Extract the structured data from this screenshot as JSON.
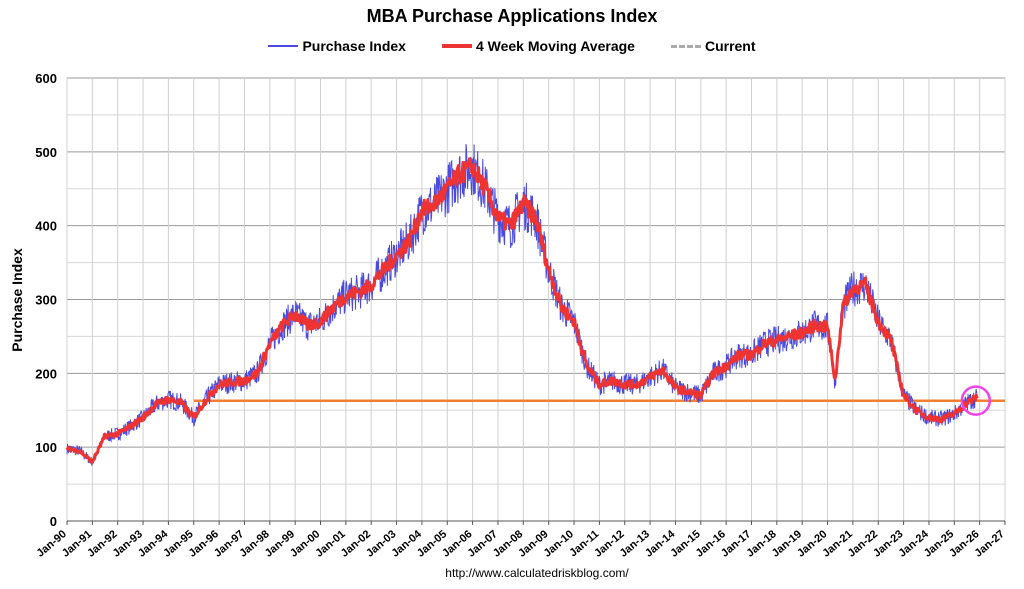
{
  "chart_data": {
    "type": "line",
    "title": "MBA Purchase Applications Index",
    "ylabel": "Purchase Index",
    "xlabel": "",
    "ylim": [
      0,
      600
    ],
    "yticks": [
      0,
      100,
      200,
      300,
      400,
      500,
      600
    ],
    "x_tick_labels": [
      "Jan-90",
      "Jan-91",
      "Jan-92",
      "Jan-93",
      "Jan-94",
      "Jan-95",
      "Jan-96",
      "Jan-97",
      "Jan-98",
      "Jan-99",
      "Jan-00",
      "Jan-01",
      "Jan-02",
      "Jan-03",
      "Jan-04",
      "Jan-05",
      "Jan-06",
      "Jan-07",
      "Jan-08",
      "Jan-09",
      "Jan-10",
      "Jan-11",
      "Jan-12",
      "Jan-13",
      "Jan-14",
      "Jan-15",
      "Jan-16",
      "Jan-17",
      "Jan-18",
      "Jan-19",
      "Jan-20",
      "Jan-21",
      "Jan-22",
      "Jan-23",
      "Jan-24",
      "Jan-25",
      "Jan-26",
      "Jan-27"
    ],
    "xlim": [
      1990,
      2027
    ],
    "grid": "horizontal and vertical",
    "legend_position": "top",
    "series": [
      {
        "name": "Purchase Index",
        "color": "#4a4adf",
        "points": [
          [
            1990.0,
            98
          ],
          [
            1990.5,
            95
          ],
          [
            1991.0,
            80
          ],
          [
            1991.5,
            115
          ],
          [
            1992.0,
            118
          ],
          [
            1992.5,
            128
          ],
          [
            1993.0,
            140
          ],
          [
            1993.5,
            158
          ],
          [
            1994.0,
            165
          ],
          [
            1994.5,
            160
          ],
          [
            1995.0,
            140
          ],
          [
            1995.5,
            165
          ],
          [
            1996.0,
            185
          ],
          [
            1996.5,
            188
          ],
          [
            1997.0,
            190
          ],
          [
            1997.5,
            200
          ],
          [
            1998.0,
            240
          ],
          [
            1998.5,
            265
          ],
          [
            1999.0,
            280
          ],
          [
            1999.5,
            265
          ],
          [
            2000.0,
            270
          ],
          [
            2000.5,
            290
          ],
          [
            2001.0,
            305
          ],
          [
            2001.5,
            310
          ],
          [
            2002.0,
            320
          ],
          [
            2002.5,
            340
          ],
          [
            2003.0,
            360
          ],
          [
            2003.5,
            380
          ],
          [
            2004.0,
            420
          ],
          [
            2004.5,
            430
          ],
          [
            2005.0,
            450
          ],
          [
            2005.5,
            470
          ],
          [
            2006.0,
            480
          ],
          [
            2006.5,
            450
          ],
          [
            2007.0,
            410
          ],
          [
            2007.5,
            400
          ],
          [
            2008.0,
            430
          ],
          [
            2008.5,
            410
          ],
          [
            2009.0,
            340
          ],
          [
            2009.5,
            290
          ],
          [
            2010.0,
            270
          ],
          [
            2010.5,
            210
          ],
          [
            2011.0,
            185
          ],
          [
            2011.5,
            190
          ],
          [
            2012.0,
            185
          ],
          [
            2012.5,
            185
          ],
          [
            2013.0,
            195
          ],
          [
            2013.5,
            205
          ],
          [
            2014.0,
            180
          ],
          [
            2014.5,
            175
          ],
          [
            2015.0,
            170
          ],
          [
            2015.5,
            200
          ],
          [
            2016.0,
            210
          ],
          [
            2016.5,
            225
          ],
          [
            2017.0,
            225
          ],
          [
            2017.5,
            240
          ],
          [
            2018.0,
            245
          ],
          [
            2018.5,
            250
          ],
          [
            2019.0,
            255
          ],
          [
            2019.5,
            265
          ],
          [
            2020.0,
            262
          ],
          [
            2020.3,
            190
          ],
          [
            2020.6,
            290
          ],
          [
            2021.0,
            315
          ],
          [
            2021.5,
            320
          ],
          [
            2022.0,
            270
          ],
          [
            2022.5,
            245
          ],
          [
            2023.0,
            170
          ],
          [
            2023.5,
            150
          ],
          [
            2024.0,
            140
          ],
          [
            2024.5,
            138
          ],
          [
            2025.0,
            145
          ],
          [
            2025.5,
            160
          ],
          [
            2025.9,
            168
          ]
        ]
      },
      {
        "name": "4 Week Moving Average",
        "color": "#ee3333",
        "points": [
          [
            1990.0,
            98
          ],
          [
            1990.5,
            95
          ],
          [
            1991.0,
            80
          ],
          [
            1991.5,
            115
          ],
          [
            1992.0,
            118
          ],
          [
            1992.5,
            128
          ],
          [
            1993.0,
            140
          ],
          [
            1993.5,
            158
          ],
          [
            1994.0,
            165
          ],
          [
            1994.5,
            160
          ],
          [
            1995.0,
            140
          ],
          [
            1995.5,
            165
          ],
          [
            1996.0,
            185
          ],
          [
            1996.5,
            188
          ],
          [
            1997.0,
            190
          ],
          [
            1997.5,
            200
          ],
          [
            1998.0,
            240
          ],
          [
            1998.5,
            265
          ],
          [
            1999.0,
            280
          ],
          [
            1999.5,
            265
          ],
          [
            2000.0,
            270
          ],
          [
            2000.5,
            290
          ],
          [
            2001.0,
            305
          ],
          [
            2001.5,
            310
          ],
          [
            2002.0,
            320
          ],
          [
            2002.5,
            340
          ],
          [
            2003.0,
            360
          ],
          [
            2003.5,
            380
          ],
          [
            2004.0,
            420
          ],
          [
            2004.5,
            430
          ],
          [
            2005.0,
            450
          ],
          [
            2005.5,
            470
          ],
          [
            2006.0,
            480
          ],
          [
            2006.5,
            450
          ],
          [
            2007.0,
            410
          ],
          [
            2007.5,
            400
          ],
          [
            2008.0,
            430
          ],
          [
            2008.5,
            410
          ],
          [
            2009.0,
            340
          ],
          [
            2009.5,
            290
          ],
          [
            2010.0,
            270
          ],
          [
            2010.5,
            210
          ],
          [
            2011.0,
            185
          ],
          [
            2011.5,
            190
          ],
          [
            2012.0,
            185
          ],
          [
            2012.5,
            185
          ],
          [
            2013.0,
            195
          ],
          [
            2013.5,
            205
          ],
          [
            2014.0,
            180
          ],
          [
            2014.5,
            175
          ],
          [
            2015.0,
            170
          ],
          [
            2015.5,
            200
          ],
          [
            2016.0,
            210
          ],
          [
            2016.5,
            225
          ],
          [
            2017.0,
            225
          ],
          [
            2017.5,
            240
          ],
          [
            2018.0,
            245
          ],
          [
            2018.5,
            250
          ],
          [
            2019.0,
            255
          ],
          [
            2019.5,
            265
          ],
          [
            2020.0,
            262
          ],
          [
            2020.3,
            190
          ],
          [
            2020.6,
            290
          ],
          [
            2021.0,
            315
          ],
          [
            2021.5,
            320
          ],
          [
            2022.0,
            270
          ],
          [
            2022.5,
            245
          ],
          [
            2023.0,
            170
          ],
          [
            2023.5,
            150
          ],
          [
            2024.0,
            140
          ],
          [
            2024.5,
            138
          ],
          [
            2025.0,
            145
          ],
          [
            2025.5,
            160
          ],
          [
            2025.9,
            168
          ]
        ]
      },
      {
        "name": "Current",
        "color": "#f08030",
        "legend_color": "#aaaaaa",
        "points": [
          [
            1995.0,
            163
          ],
          [
            2027.0,
            163
          ]
        ]
      }
    ],
    "highlight": {
      "x": 2025.85,
      "y": 163,
      "color": "#ee44ee"
    }
  },
  "source": "http://www.calculatedriskblog.com/"
}
